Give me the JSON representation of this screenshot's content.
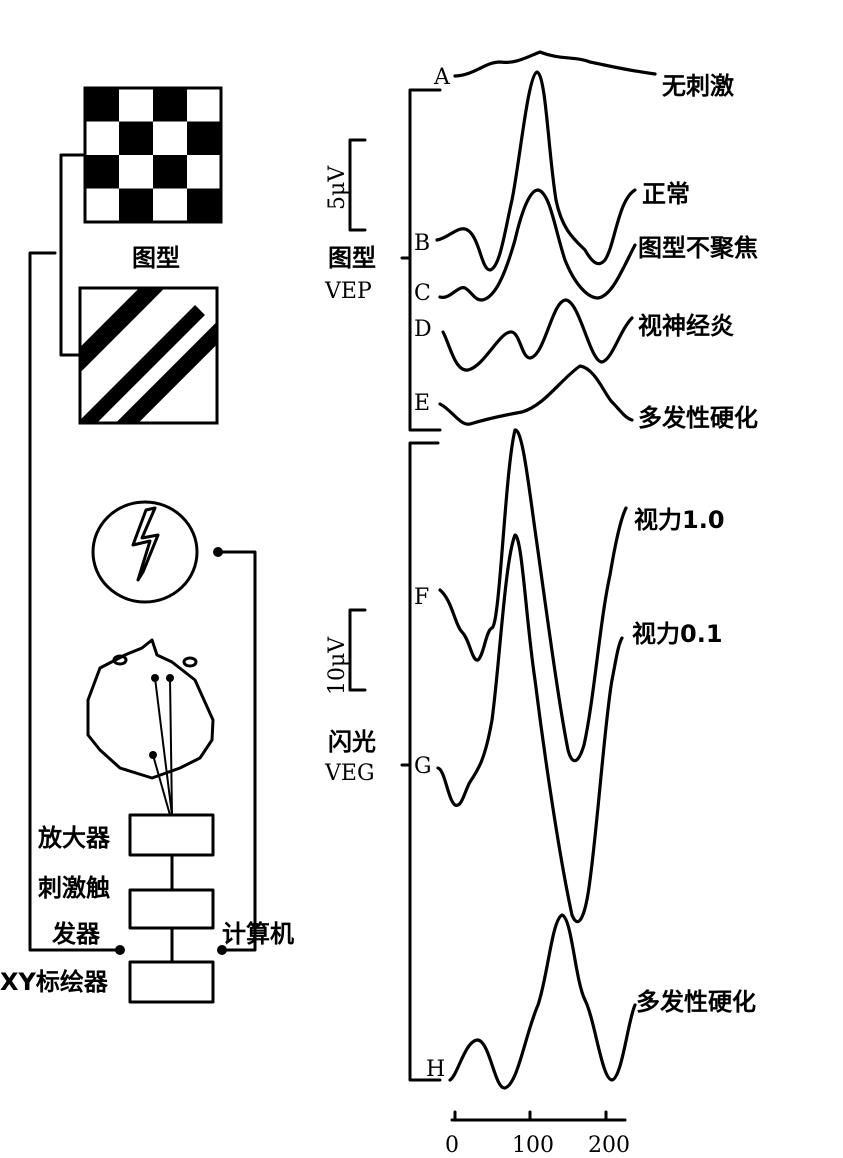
{
  "left": {
    "pattern_label": "图型",
    "amplifier": "放大器",
    "trigger_line1": "刺激触",
    "trigger_line2": "发器",
    "computer": "计算机",
    "plotter": "XY标绘器"
  },
  "vep": {
    "scale": "5μV",
    "group_label_1": "图型",
    "group_label_2": "VEP",
    "traces": [
      {
        "letter": "A",
        "label": "无刺激"
      },
      {
        "letter": "B",
        "label": "正常"
      },
      {
        "letter": "C",
        "label": "图型不聚焦"
      },
      {
        "letter": "D",
        "label": "视神经炎"
      },
      {
        "letter": "E",
        "label": "多发性硬化"
      }
    ]
  },
  "veg": {
    "scale": "10μV",
    "group_label_1": "闪光",
    "group_label_2": "VEG",
    "traces": [
      {
        "letter": "F",
        "label": "视力1.0"
      },
      {
        "letter": "G",
        "label": "视力0.1"
      },
      {
        "letter": "H",
        "label": "多发性硬化"
      }
    ]
  },
  "time_axis": {
    "ticks": [
      "0",
      "100",
      "200"
    ]
  }
}
